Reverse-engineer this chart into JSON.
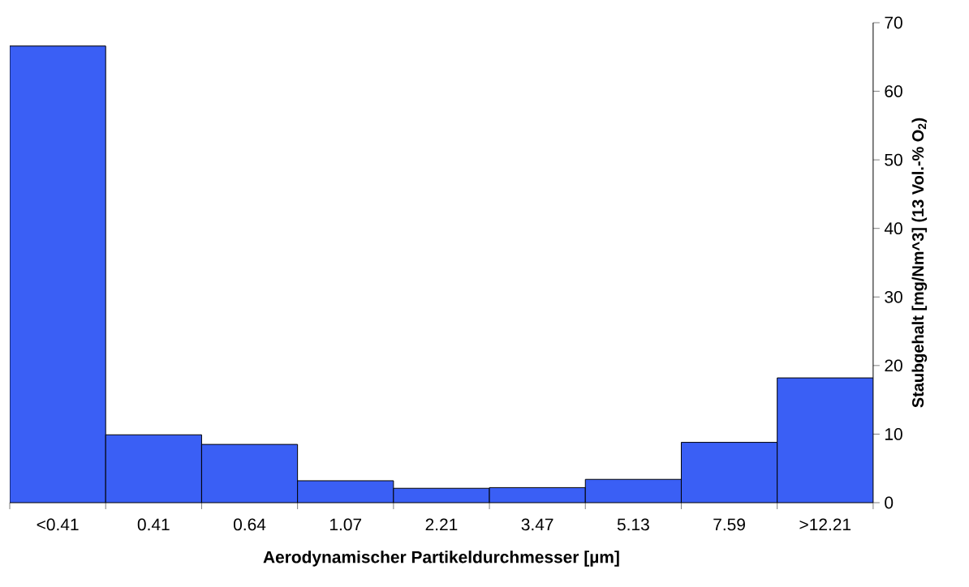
{
  "chart_data": {
    "type": "bar",
    "xlabel": "Aerodynamischer Partikeldurchmesser [µm]",
    "ylabel": "Staubgehalt [mg/Nm^3] (13 Vol.-% O$_{2}$)",
    "categories": [
      "<0.41",
      "0.41",
      "0.64",
      "1.07",
      "2.21",
      "3.47",
      "5.13",
      "7.59",
      ">12.21"
    ],
    "values": [
      66.6,
      9.9,
      8.5,
      3.2,
      2.1,
      2.2,
      3.4,
      8.8,
      18.2
    ],
    "color": "#3a5ff5",
    "ylim": [
      0,
      70
    ],
    "yticks": [
      0,
      10,
      20,
      30,
      40,
      50,
      60,
      70
    ]
  }
}
